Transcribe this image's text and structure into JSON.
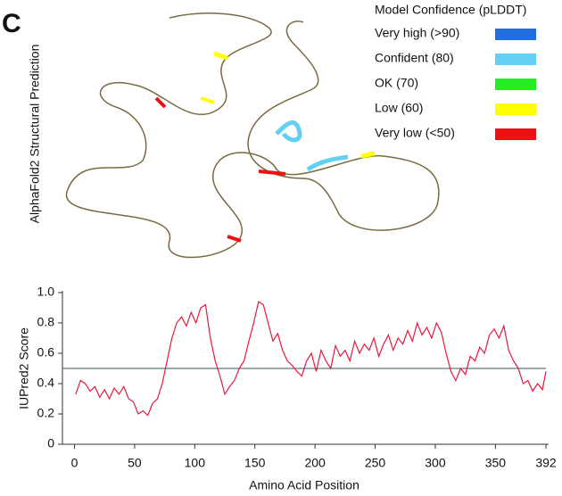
{
  "panel_label": "C",
  "structure": {
    "axis_label": "AlphaFold2 Structural Prediction",
    "legend": {
      "title": "Model Confidence (pLDDT)",
      "items": [
        {
          "label": "Very high (>90)",
          "color": "#1f6fe0"
        },
        {
          "label": "Confident (80)",
          "color": "#62d0f5"
        },
        {
          "label": "OK (70)",
          "color": "#22ee22"
        },
        {
          "label": "Low (60)",
          "color": "#ffff00"
        },
        {
          "label": "Very low (<50)",
          "color": "#ee1111"
        }
      ]
    }
  },
  "chart_data": {
    "type": "line",
    "xlabel": "Amino Acid Position",
    "ylabel": "IUPred2 Score",
    "x": [
      1,
      5,
      9,
      13,
      17,
      21,
      25,
      29,
      33,
      37,
      41,
      45,
      49,
      53,
      57,
      61,
      65,
      69,
      73,
      77,
      81,
      85,
      89,
      93,
      97,
      101,
      105,
      109,
      113,
      117,
      121,
      125,
      129,
      133,
      137,
      141,
      145,
      149,
      153,
      157,
      161,
      165,
      169,
      173,
      177,
      181,
      185,
      189,
      193,
      197,
      201,
      205,
      209,
      213,
      217,
      221,
      225,
      229,
      233,
      237,
      241,
      245,
      249,
      253,
      257,
      261,
      265,
      269,
      273,
      277,
      281,
      285,
      289,
      293,
      297,
      301,
      305,
      309,
      313,
      317,
      321,
      325,
      329,
      333,
      337,
      341,
      345,
      349,
      353,
      357,
      361,
      365,
      369,
      373,
      377,
      381,
      385,
      389,
      392
    ],
    "series": [
      {
        "color": "#e8173e",
        "values": [
          0.33,
          0.42,
          0.4,
          0.35,
          0.38,
          0.31,
          0.36,
          0.3,
          0.37,
          0.33,
          0.38,
          0.3,
          0.28,
          0.2,
          0.22,
          0.19,
          0.27,
          0.3,
          0.4,
          0.55,
          0.7,
          0.8,
          0.84,
          0.78,
          0.87,
          0.8,
          0.9,
          0.92,
          0.7,
          0.55,
          0.45,
          0.33,
          0.38,
          0.42,
          0.5,
          0.55,
          0.68,
          0.8,
          0.94,
          0.92,
          0.8,
          0.68,
          0.73,
          0.62,
          0.55,
          0.52,
          0.48,
          0.45,
          0.55,
          0.6,
          0.48,
          0.62,
          0.55,
          0.5,
          0.65,
          0.58,
          0.62,
          0.55,
          0.68,
          0.6,
          0.66,
          0.62,
          0.7,
          0.58,
          0.66,
          0.72,
          0.62,
          0.7,
          0.66,
          0.75,
          0.68,
          0.8,
          0.72,
          0.77,
          0.7,
          0.8,
          0.74,
          0.6,
          0.48,
          0.42,
          0.5,
          0.46,
          0.58,
          0.55,
          0.64,
          0.6,
          0.72,
          0.76,
          0.7,
          0.78,
          0.62,
          0.55,
          0.5,
          0.4,
          0.42,
          0.35,
          0.4,
          0.36,
          0.48
        ]
      }
    ],
    "threshold": 0.5,
    "threshold_color": "#5a7a7a",
    "xlim": [
      -10,
      392
    ],
    "xticks": [
      0,
      50,
      100,
      150,
      200,
      250,
      300,
      350,
      392
    ],
    "ylim": [
      0,
      1
    ],
    "yticks": [
      0,
      0.2,
      0.4,
      0.6,
      0.8,
      {
        "value": 1,
        "label": "1.0"
      }
    ]
  }
}
